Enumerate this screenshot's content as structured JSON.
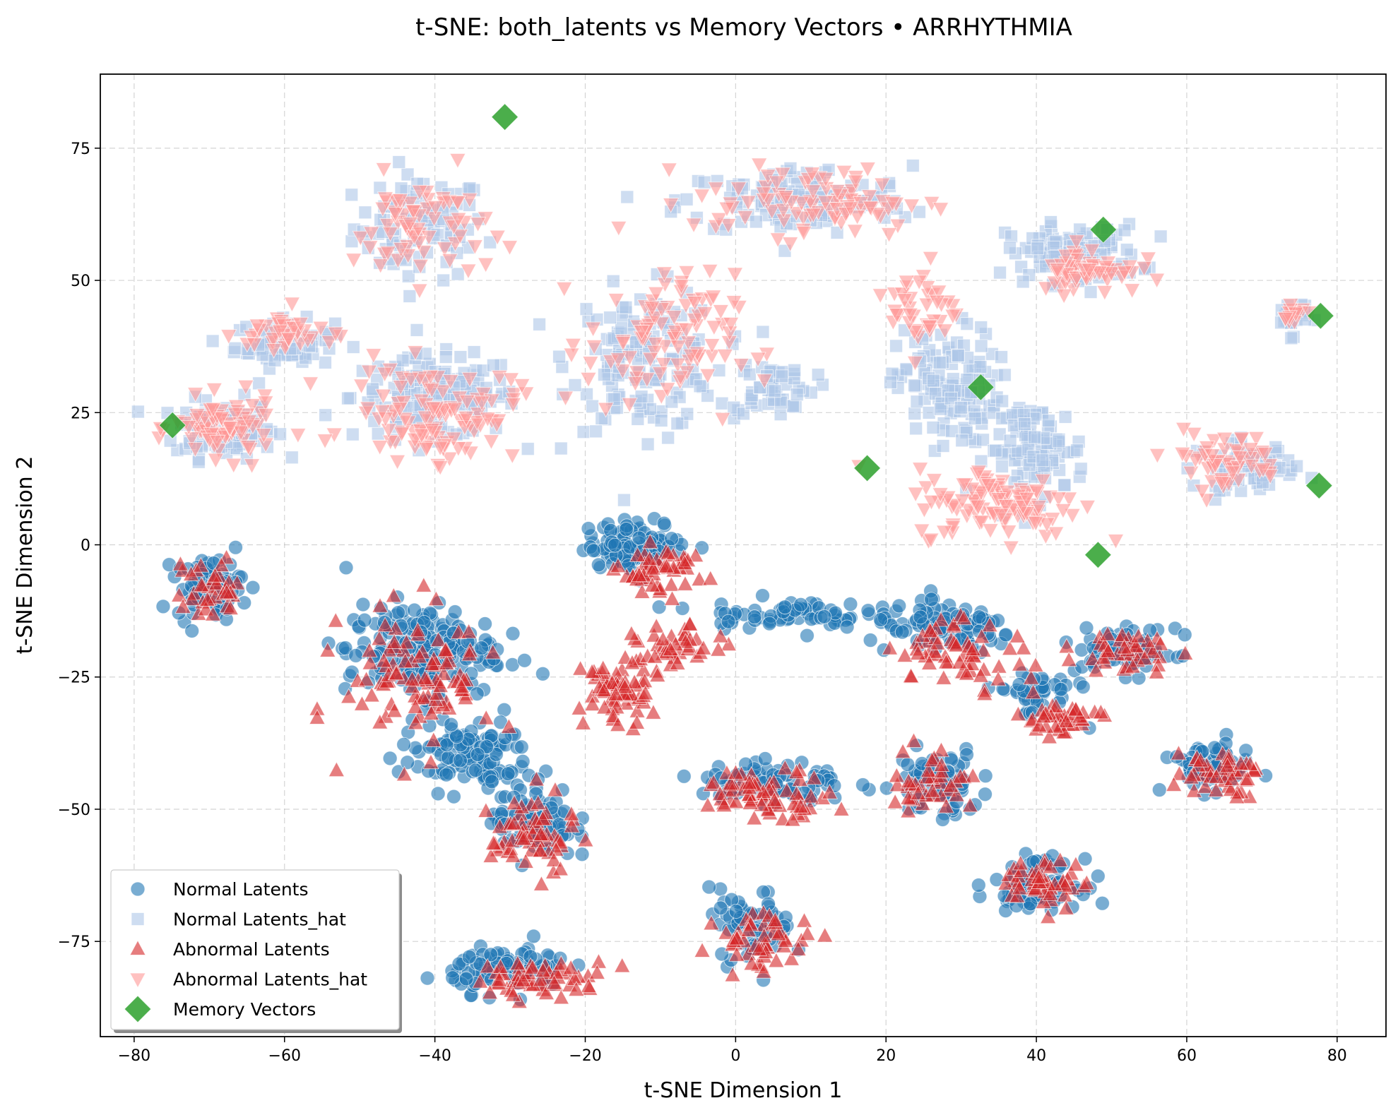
{
  "chart_data": {
    "type": "scatter",
    "title": "t-SNE: both_latents vs Memory Vectors • ARRHYTHMIA",
    "xlabel": "t-SNE Dimension 1",
    "ylabel": "t-SNE Dimension 2",
    "xlim": [
      -84.5,
      86.5
    ],
    "ylim": [
      -93,
      89
    ],
    "xticks": [
      -80,
      -60,
      -40,
      -20,
      0,
      20,
      40,
      60,
      80
    ],
    "xtick_labels": [
      "−80",
      "−60",
      "−40",
      "−20",
      "0",
      "20",
      "40",
      "60",
      "80"
    ],
    "yticks": [
      -75,
      -50,
      -25,
      0,
      25,
      50,
      75
    ],
    "ytick_labels": [
      "−75",
      "−50",
      "−25",
      "0",
      "25",
      "50",
      "75"
    ],
    "grid": true,
    "legend_position": "lower-left",
    "series": [
      {
        "name": "Normal Latents",
        "marker": "circle",
        "color": "#1f77b4",
        "clusters": [
          {
            "cx": -70,
            "cy": -8,
            "sx": 4,
            "sy": 5,
            "n": 70
          },
          {
            "cx": -42,
            "cy": -20,
            "sx": 9,
            "sy": 8,
            "n": 190
          },
          {
            "cx": -36,
            "cy": -40,
            "sx": 8,
            "sy": 6,
            "n": 110
          },
          {
            "cx": -27,
            "cy": -52,
            "sx": 5,
            "sy": 7,
            "n": 90
          },
          {
            "cx": -13,
            "cy": 0,
            "sx": 6,
            "sy": 4,
            "n": 110
          },
          {
            "cx": 6,
            "cy": -13,
            "sx": 10,
            "sy": 2.5,
            "n": 70
          },
          {
            "cx": 5,
            "cy": -45,
            "sx": 9,
            "sy": 4,
            "n": 80
          },
          {
            "cx": 2,
            "cy": -72,
            "sx": 5,
            "sy": 6,
            "n": 60
          },
          {
            "cx": -30,
            "cy": -80,
            "sx": 7,
            "sy": 4,
            "n": 90
          },
          {
            "cx": 28,
            "cy": -16,
            "sx": 9,
            "sy": 4,
            "n": 100
          },
          {
            "cx": 27,
            "cy": -45,
            "sx": 5,
            "sy": 6,
            "n": 70
          },
          {
            "cx": 40,
            "cy": -64,
            "sx": 5,
            "sy": 4,
            "n": 90
          },
          {
            "cx": 52,
            "cy": -20,
            "sx": 6,
            "sy": 4,
            "n": 70
          },
          {
            "cx": 63,
            "cy": -42,
            "sx": 5,
            "sy": 4,
            "n": 70
          },
          {
            "cx": 40,
            "cy": -28,
            "sx": 5,
            "sy": 4,
            "n": 40
          }
        ]
      },
      {
        "name": "Normal Latents_hat",
        "marker": "square",
        "color": "#aec7e8",
        "clusters": [
          {
            "cx": -42,
            "cy": 60,
            "sx": 8,
            "sy": 9,
            "n": 90
          },
          {
            "cx": -68,
            "cy": 22,
            "sx": 6,
            "sy": 5,
            "n": 110
          },
          {
            "cx": -60,
            "cy": 38,
            "sx": 6,
            "sy": 4,
            "n": 70
          },
          {
            "cx": -40,
            "cy": 28,
            "sx": 10,
            "sy": 7,
            "n": 150
          },
          {
            "cx": -12,
            "cy": 35,
            "sx": 9,
            "sy": 12,
            "n": 150
          },
          {
            "cx": 8,
            "cy": 65,
            "sx": 14,
            "sy": 6,
            "n": 130
          },
          {
            "cx": 5,
            "cy": 30,
            "sx": 5,
            "sy": 5,
            "n": 50
          },
          {
            "cx": 28,
            "cy": 30,
            "sx": 6,
            "sy": 10,
            "n": 120
          },
          {
            "cx": 45,
            "cy": 55,
            "sx": 8,
            "sy": 5,
            "n": 110
          },
          {
            "cx": 40,
            "cy": 18,
            "sx": 6,
            "sy": 8,
            "n": 100
          },
          {
            "cx": 68,
            "cy": 15,
            "sx": 6,
            "sy": 4,
            "n": 70
          },
          {
            "cx": 74,
            "cy": 43,
            "sx": 2,
            "sy": 3,
            "n": 25
          }
        ]
      },
      {
        "name": "Abnormal Latents",
        "marker": "triangle-up",
        "color": "#d62728",
        "clusters": [
          {
            "cx": -70,
            "cy": -9,
            "sx": 4,
            "sy": 5,
            "n": 35
          },
          {
            "cx": -42,
            "cy": -25,
            "sx": 9,
            "sy": 12,
            "n": 100
          },
          {
            "cx": -27,
            "cy": -55,
            "sx": 5,
            "sy": 7,
            "n": 60
          },
          {
            "cx": -16,
            "cy": -28,
            "sx": 4,
            "sy": 6,
            "n": 60
          },
          {
            "cx": -10,
            "cy": -5,
            "sx": 5,
            "sy": 4,
            "n": 50
          },
          {
            "cx": -8,
            "cy": -20,
            "sx": 5,
            "sy": 4,
            "n": 40
          },
          {
            "cx": 4,
            "cy": -47,
            "sx": 8,
            "sy": 4,
            "n": 70
          },
          {
            "cx": 4,
            "cy": -75,
            "sx": 6,
            "sy": 5,
            "n": 50
          },
          {
            "cx": -26,
            "cy": -82,
            "sx": 8,
            "sy": 3,
            "n": 55
          },
          {
            "cx": 30,
            "cy": -20,
            "sx": 8,
            "sy": 6,
            "n": 60
          },
          {
            "cx": 26,
            "cy": -45,
            "sx": 5,
            "sy": 6,
            "n": 40
          },
          {
            "cx": 41,
            "cy": -64,
            "sx": 5,
            "sy": 4,
            "n": 50
          },
          {
            "cx": 52,
            "cy": -20,
            "sx": 6,
            "sy": 4,
            "n": 40
          },
          {
            "cx": 64,
            "cy": -43,
            "sx": 5,
            "sy": 4,
            "n": 45
          },
          {
            "cx": 43,
            "cy": -33,
            "sx": 5,
            "sy": 3,
            "n": 40
          }
        ]
      },
      {
        "name": "Abnormal Latents_hat",
        "marker": "triangle-down",
        "color": "#ff9896",
        "clusters": [
          {
            "cx": -42,
            "cy": 60,
            "sx": 8,
            "sy": 9,
            "n": 70
          },
          {
            "cx": -68,
            "cy": 22,
            "sx": 6,
            "sy": 5,
            "n": 80
          },
          {
            "cx": -60,
            "cy": 40,
            "sx": 6,
            "sy": 4,
            "n": 40
          },
          {
            "cx": -40,
            "cy": 25,
            "sx": 10,
            "sy": 8,
            "n": 110
          },
          {
            "cx": -10,
            "cy": 38,
            "sx": 9,
            "sy": 12,
            "n": 100
          },
          {
            "cx": 10,
            "cy": 65,
            "sx": 14,
            "sy": 6,
            "n": 90
          },
          {
            "cx": 25,
            "cy": 45,
            "sx": 4,
            "sy": 8,
            "n": 40
          },
          {
            "cx": 35,
            "cy": 8,
            "sx": 10,
            "sy": 6,
            "n": 110
          },
          {
            "cx": 47,
            "cy": 52,
            "sx": 6,
            "sy": 4,
            "n": 60
          },
          {
            "cx": 65,
            "cy": 16,
            "sx": 7,
            "sy": 5,
            "n": 55
          },
          {
            "cx": 74,
            "cy": 44,
            "sx": 2,
            "sy": 2,
            "n": 15
          }
        ]
      },
      {
        "name": "Memory Vectors",
        "marker": "diamond",
        "color": "#2ca02c",
        "points": [
          {
            "x": -30.7,
            "y": 80.9
          },
          {
            "x": -74.9,
            "y": 22.6
          },
          {
            "x": 48.9,
            "y": 59.6
          },
          {
            "x": 77.8,
            "y": 43.3
          },
          {
            "x": 32.6,
            "y": 29.8
          },
          {
            "x": 17.5,
            "y": 14.5
          },
          {
            "x": 77.6,
            "y": 11.2
          },
          {
            "x": 48.2,
            "y": -1.9
          }
        ]
      }
    ]
  }
}
